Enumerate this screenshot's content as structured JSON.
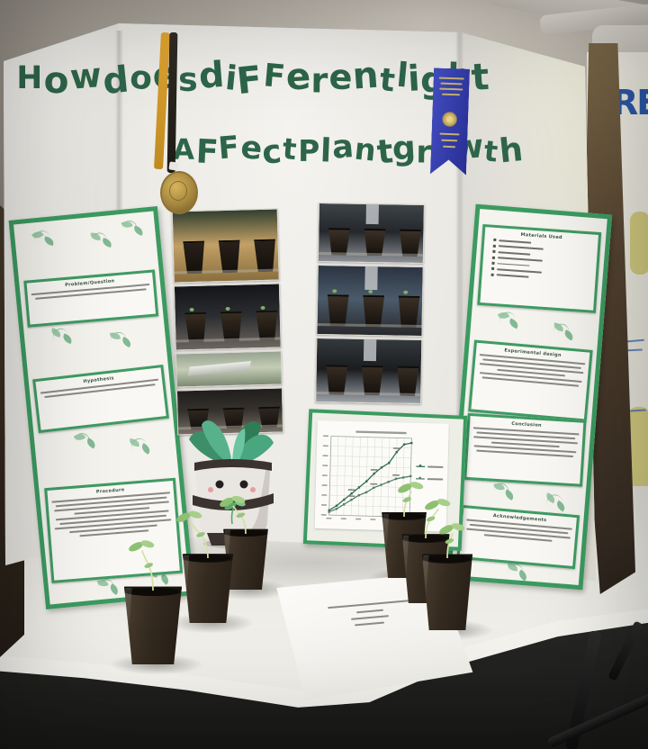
{
  "scene": {
    "description": "Photograph of a science fair trifold display board in an exhibition hall, with seedling pots and a report on a white table"
  },
  "title": {
    "line1": "How does diFFerent light",
    "line2": "AFFect Plant growth",
    "color": "#2e6549"
  },
  "awards": {
    "ribbon": "first-place blue ribbon with gold lettering and emblem (text too small to read)",
    "medal": "gold medal on black-and-gold lanyard"
  },
  "left_wing_cards": [
    {
      "title": "Problem/Question",
      "body_lines": 2,
      "note": "body text illegible"
    },
    {
      "title": "Hypothesis",
      "body_lines": 2,
      "note": "body text illegible"
    },
    {
      "title": "Procedure",
      "body_lines": 9,
      "note": "body text illegible"
    }
  ],
  "right_wing_cards": [
    {
      "title": "Materials Used",
      "body_lines": 7,
      "list": true,
      "note": "numbered list, items illegible"
    },
    {
      "title": "Experimental design",
      "body_lines": 6,
      "note": "body text illegible"
    },
    {
      "title": "Conclusion",
      "body_lines": 6,
      "note": "body text illegible"
    },
    {
      "title": "Acknowledgements",
      "body_lines": 4,
      "note": "body text illegible"
    }
  ],
  "photos": {
    "left": [
      {
        "desc": "three pots on sunlit windowsill",
        "top": "#32402f",
        "mid": "#c2a066",
        "bottom": "#8a6f3e",
        "pot": "#281f18"
      },
      {
        "desc": "three pots with seedlings in dark room",
        "top": "#141519",
        "mid": "#2b2d31",
        "bottom": "#6b655d",
        "pot": "#362c21",
        "sprouts": true
      },
      {
        "desc": "outdoor greenhouse view",
        "top": "#97a391",
        "mid": "#c4ccb5",
        "bottom": "#7d8974",
        "greenhouse": true
      },
      {
        "desc": "three pots close-up",
        "top": "#201e1c",
        "mid": "#36322d",
        "bottom": "#766f65",
        "pot": "#2e2620"
      }
    ],
    "right": [
      {
        "desc": "three pots on shelf, low light",
        "top": "#3d4347",
        "mid": "#24272b",
        "bottom": "#8d9195",
        "pot": "#3a3026",
        "strip": true
      },
      {
        "desc": "three pots with sprouts, blue tarp behind",
        "top": "#2b3340",
        "mid": "#4b5b6b",
        "bottom": "#28292c",
        "pot": "#3a3026",
        "sprouts": true,
        "strip": true
      },
      {
        "desc": "three pots on shelf",
        "top": "#34393d",
        "mid": "#1a1c1f",
        "bottom": "#9aa0a5",
        "pot": "#352c22",
        "strip": true
      }
    ]
  },
  "chart_data": {
    "type": "line",
    "title": "",
    "title_note": "handwritten chart title illegible in photo",
    "x": [
      1,
      2,
      3,
      4,
      5,
      6,
      7,
      8,
      9,
      10,
      11,
      12
    ],
    "xlabel": "",
    "ylabel": "",
    "ylim": [
      0,
      5
    ],
    "grid": true,
    "legend_position": "right",
    "series": [
      {
        "name": "upper line (legend illegible)",
        "values": [
          0.3,
          0.6,
          1.0,
          1.4,
          1.8,
          2.2,
          2.7,
          3.1,
          3.4,
          4.1,
          4.6,
          4.7
        ]
      },
      {
        "name": "lower line (legend illegible)",
        "values": [
          0.2,
          0.4,
          0.7,
          1.0,
          1.3,
          1.5,
          1.8,
          2.0,
          2.2,
          2.4,
          2.5,
          2.6
        ]
      }
    ],
    "values_note": "values estimated from pixel positions; tick labels too small to read"
  },
  "report_paper": {
    "lines": 4,
    "note": "typed title page lying on table, text illegible"
  },
  "pots": {
    "count": 6,
    "contents": "peat pots with young seedlings"
  },
  "background": {
    "neighbor_poster_text": "RE"
  }
}
